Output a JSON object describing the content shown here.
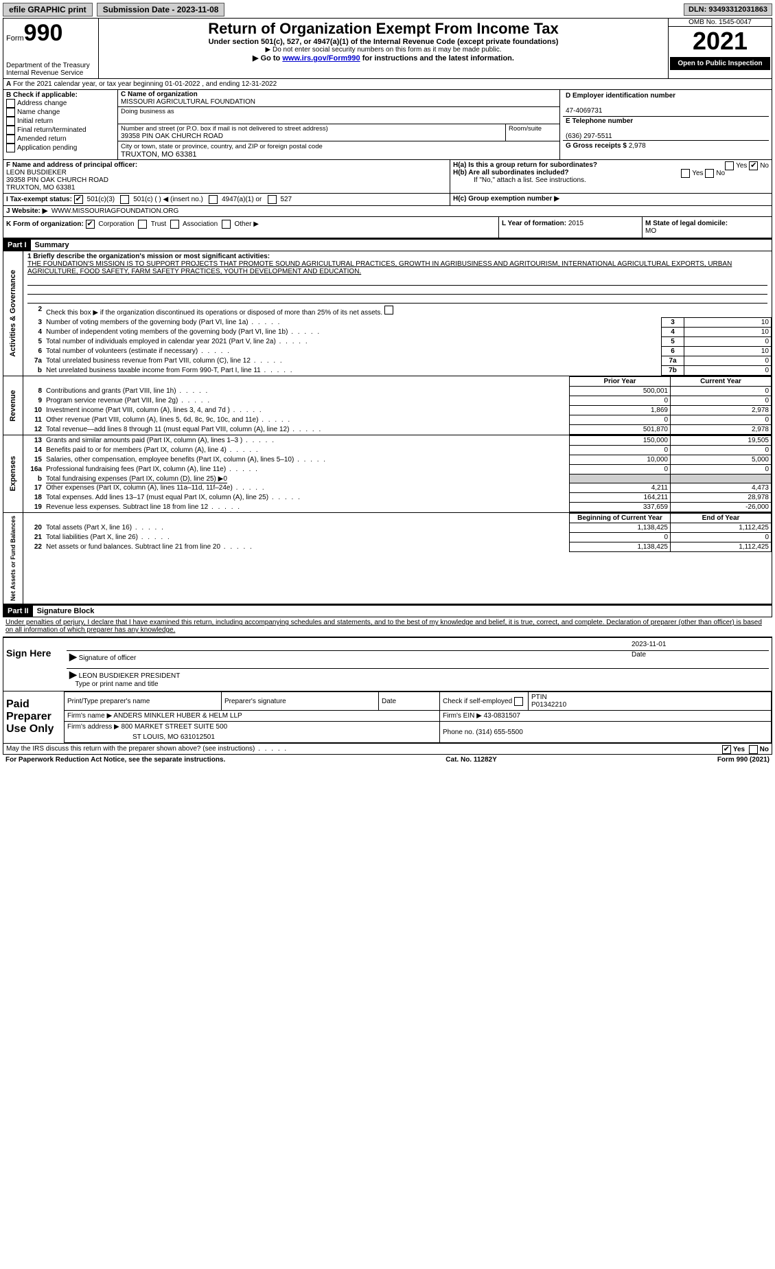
{
  "topbar": {
    "efile": "efile GRAPHIC print",
    "submission": "Submission Date - 2023-11-08",
    "dln": "DLN: 93493312031863"
  },
  "header": {
    "form_prefix": "Form",
    "form_num": "990",
    "dept": "Department of the Treasury",
    "irs": "Internal Revenue Service",
    "title": "Return of Organization Exempt From Income Tax",
    "sub1": "Under section 501(c), 527, or 4947(a)(1) of the Internal Revenue Code (except private foundations)",
    "sub2": "▶ Do not enter social security numbers on this form as it may be made public.",
    "sub3_pre": "▶ Go to ",
    "sub3_link": "www.irs.gov/Form990",
    "sub3_post": " for instructions and the latest information.",
    "omb": "OMB No. 1545-0047",
    "year": "2021",
    "open": "Open to Public Inspection"
  },
  "A": {
    "text": "For the 2021 calendar year, or tax year beginning 01-01-2022   , and ending 12-31-2022"
  },
  "B": {
    "label": "B Check if applicable:",
    "items": [
      "Address change",
      "Name change",
      "Initial return",
      "Final return/terminated",
      "Amended return",
      "Application pending"
    ]
  },
  "C": {
    "name_label": "C Name of organization",
    "name": "MISSOURI AGRICULTURAL FOUNDATION",
    "dba_label": "Doing business as",
    "addr_label": "Number and street (or P.O. box if mail is not delivered to street address)",
    "room_label": "Room/suite",
    "addr": "39358 PIN OAK CHURCH ROAD",
    "city_label": "City or town, state or province, country, and ZIP or foreign postal code",
    "city": "TRUXTON, MO  63381"
  },
  "D": {
    "label": "D Employer identification number",
    "val": "47-4069731"
  },
  "E": {
    "label": "E Telephone number",
    "val": "(636) 297-5511"
  },
  "G": {
    "label": "G Gross receipts $",
    "val": "2,978"
  },
  "F": {
    "label": "F  Name and address of principal officer:",
    "name": "LEON BUSDIEKER",
    "addr": "39358 PIN OAK CHURCH ROAD",
    "city": "TRUXTON, MO  63381"
  },
  "H": {
    "a": "H(a)  Is this a group return for subordinates?",
    "b": "H(b)  Are all subordinates included?",
    "b2": "If \"No,\" attach a list. See instructions.",
    "c": "H(c)  Group exemption number ▶",
    "yes": "Yes",
    "no": "No"
  },
  "I": {
    "label": "I   Tax-exempt status:",
    "opts": [
      "501(c)(3)",
      "501(c) (  ) ◀ (insert no.)",
      "4947(a)(1) or",
      "527"
    ]
  },
  "J": {
    "label": "J   Website: ▶",
    "val": "WWW.MISSOURIAGFOUNDATION.ORG"
  },
  "K": {
    "label": "K Form of organization:",
    "opts": [
      "Corporation",
      "Trust",
      "Association",
      "Other ▶"
    ]
  },
  "L": {
    "label": "L Year of formation: ",
    "val": "2015"
  },
  "M": {
    "label": "M State of legal domicile:",
    "val": "MO"
  },
  "part1": {
    "hdr": "Part I",
    "title": "Summary",
    "q1": "1  Briefly describe the organization's mission or most significant activities:",
    "mission": "THE FOUNDATION'S MISSION IS TO SUPPORT PROJECTS THAT PROMOTE SOUND AGRICULTURAL PRACTICES, GROWTH IN AGRIBUSINESS AND AGRITOURISM, INTERNATIONAL AGRICULTURAL EXPORTS, URBAN AGRICULTURE, FOOD SAFETY, FARM SAFETY PRACTICES, YOUTH DEVELOPMENT AND EDUCATION.",
    "q2": "Check this box ▶       if the organization discontinued its operations or disposed of more than 25% of its net assets.",
    "gov_label": "Activities & Governance",
    "rev_label": "Revenue",
    "exp_label": "Expenses",
    "net_label": "Net Assets or Fund Balances",
    "rows_gov": [
      {
        "n": "3",
        "d": "Number of voting members of the governing body (Part VI, line 1a)",
        "b": "3",
        "v": "10"
      },
      {
        "n": "4",
        "d": "Number of independent voting members of the governing body (Part VI, line 1b)",
        "b": "4",
        "v": "10"
      },
      {
        "n": "5",
        "d": "Total number of individuals employed in calendar year 2021 (Part V, line 2a)",
        "b": "5",
        "v": "0"
      },
      {
        "n": "6",
        "d": "Total number of volunteers (estimate if necessary)",
        "b": "6",
        "v": "10"
      },
      {
        "n": "7a",
        "d": "Total unrelated business revenue from Part VIII, column (C), line 12",
        "b": "7a",
        "v": "0"
      },
      {
        "n": "b",
        "d": "Net unrelated business taxable income from Form 990-T, Part I, line 11",
        "b": "7b",
        "v": "0"
      }
    ],
    "col_prior": "Prior Year",
    "col_curr": "Current Year",
    "rows_rev": [
      {
        "n": "8",
        "d": "Contributions and grants (Part VIII, line 1h)",
        "p": "500,001",
        "c": "0"
      },
      {
        "n": "9",
        "d": "Program service revenue (Part VIII, line 2g)",
        "p": "0",
        "c": "0"
      },
      {
        "n": "10",
        "d": "Investment income (Part VIII, column (A), lines 3, 4, and 7d )",
        "p": "1,869",
        "c": "2,978"
      },
      {
        "n": "11",
        "d": "Other revenue (Part VIII, column (A), lines 5, 6d, 8c, 9c, 10c, and 11e)",
        "p": "0",
        "c": "0"
      },
      {
        "n": "12",
        "d": "Total revenue—add lines 8 through 11 (must equal Part VIII, column (A), line 12)",
        "p": "501,870",
        "c": "2,978"
      }
    ],
    "rows_exp": [
      {
        "n": "13",
        "d": "Grants and similar amounts paid (Part IX, column (A), lines 1–3 )",
        "p": "150,000",
        "c": "19,505"
      },
      {
        "n": "14",
        "d": "Benefits paid to or for members (Part IX, column (A), line 4)",
        "p": "0",
        "c": "0"
      },
      {
        "n": "15",
        "d": "Salaries, other compensation, employee benefits (Part IX, column (A), lines 5–10)",
        "p": "10,000",
        "c": "5,000"
      },
      {
        "n": "16a",
        "d": "Professional fundraising fees (Part IX, column (A), line 11e)",
        "p": "0",
        "c": "0"
      }
    ],
    "row_b": {
      "n": "b",
      "d": "Total fundraising expenses (Part IX, column (D), line 25) ▶0"
    },
    "rows_exp2": [
      {
        "n": "17",
        "d": "Other expenses (Part IX, column (A), lines 11a–11d, 11f–24e)",
        "p": "4,211",
        "c": "4,473"
      },
      {
        "n": "18",
        "d": "Total expenses. Add lines 13–17 (must equal Part IX, column (A), line 25)",
        "p": "164,211",
        "c": "28,978"
      },
      {
        "n": "19",
        "d": "Revenue less expenses. Subtract line 18 from line 12",
        "p": "337,659",
        "c": "-26,000"
      }
    ],
    "col_beg": "Beginning of Current Year",
    "col_end": "End of Year",
    "rows_net": [
      {
        "n": "20",
        "d": "Total assets (Part X, line 16)",
        "p": "1,138,425",
        "c": "1,112,425"
      },
      {
        "n": "21",
        "d": "Total liabilities (Part X, line 26)",
        "p": "0",
        "c": "0"
      },
      {
        "n": "22",
        "d": "Net assets or fund balances. Subtract line 21 from line 20",
        "p": "1,138,425",
        "c": "1,112,425"
      }
    ]
  },
  "part2": {
    "hdr": "Part II",
    "title": "Signature Block",
    "decl": "Under penalties of perjury, I declare that I have examined this return, including accompanying schedules and statements, and to the best of my knowledge and belief, it is true, correct, and complete. Declaration of preparer (other than officer) is based on all information of which preparer has any knowledge."
  },
  "sign": {
    "here": "Sign Here",
    "sigoff": "Signature of officer",
    "date": "Date",
    "dateval": "2023-11-01",
    "name": "LEON BUSDIEKER  PRESIDENT",
    "nametype": "Type or print name and title"
  },
  "paid": {
    "label": "Paid Preparer Use Only",
    "h1": "Print/Type preparer's name",
    "h2": "Preparer's signature",
    "h3": "Date",
    "h4": "Check         if self-employed",
    "h5": "PTIN",
    "ptin": "P01342210",
    "firm_label": "Firm's name    ▶",
    "firm": "ANDERS MINKLER HUBER & HELM LLP",
    "ein_label": "Firm's EIN ▶",
    "ein": "43-0831507",
    "addr_label": "Firm's address ▶",
    "addr1": "800 MARKET STREET SUITE 500",
    "addr2": "ST LOUIS, MO  631012501",
    "phone_label": "Phone no.",
    "phone": "(314) 655-5500"
  },
  "discuss": "May the IRS discuss this return with the preparer shown above? (see instructions)",
  "foot": {
    "l": "For Paperwork Reduction Act Notice, see the separate instructions.",
    "m": "Cat. No. 11282Y",
    "r": "Form 990 (2021)"
  }
}
